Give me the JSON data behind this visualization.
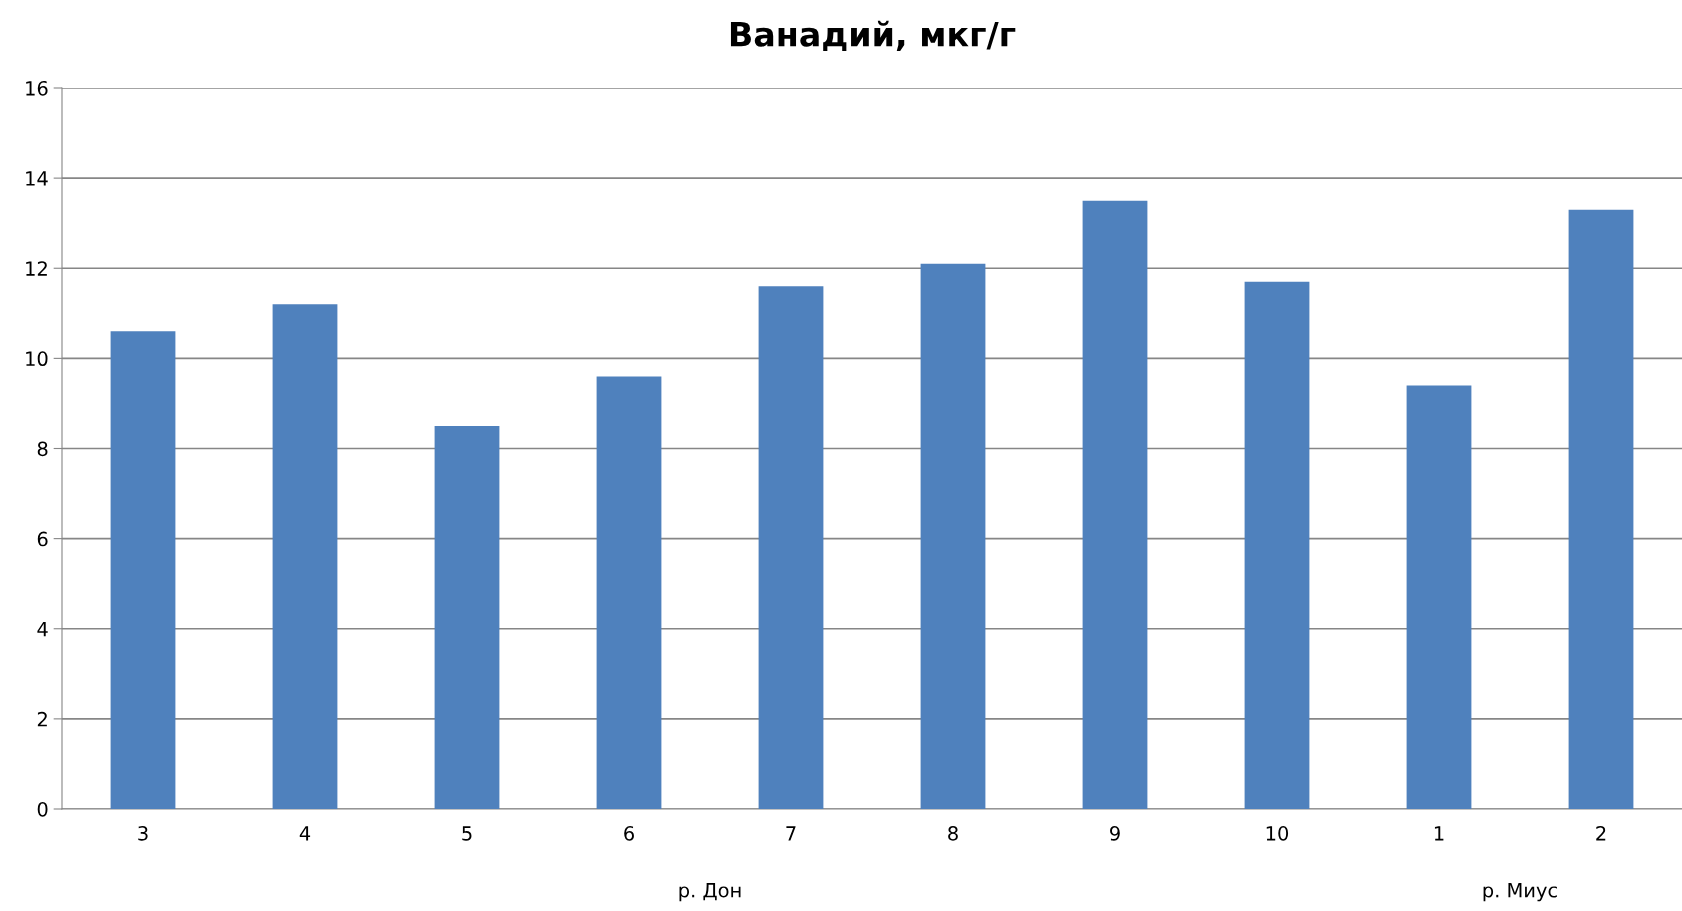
{
  "chart_data": {
    "type": "bar",
    "title": "Ванадий, мкг/г",
    "categories": [
      "3",
      "4",
      "5",
      "6",
      "7",
      "8",
      "9",
      "10",
      "1",
      "2"
    ],
    "values": [
      10.6,
      11.2,
      8.5,
      9.6,
      11.6,
      12.1,
      13.5,
      11.7,
      9.4,
      13.3
    ],
    "color": "#4f81bd",
    "ylim": [
      0,
      16
    ],
    "yticks": [
      0,
      2,
      4,
      6,
      8,
      10,
      12,
      14,
      16
    ],
    "grid": "y",
    "annotations": [
      "р. Дон",
      "р. Миус"
    ]
  }
}
